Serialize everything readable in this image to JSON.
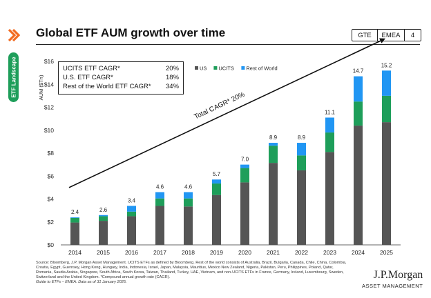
{
  "header": {
    "title": "Global ETF AUM growth over time",
    "tags": [
      "GTE",
      "EMEA",
      "4"
    ],
    "side_tab": "ETF Landscape"
  },
  "cagr_box": {
    "rows": [
      {
        "label": "UCITS ETF CAGR*",
        "value": "20%"
      },
      {
        "label": "U.S. ETF CAGR*",
        "value": "18%"
      },
      {
        "label": "Rest of the World ETF CAGR*",
        "value": "34%"
      }
    ]
  },
  "chart_data": {
    "type": "bar",
    "stacked": true,
    "ylabel": "AUM ($Tn)",
    "ylim": [
      0,
      16
    ],
    "yticks": [
      "$0",
      "$2",
      "$4",
      "$6",
      "$8",
      "$10",
      "$12",
      "$14",
      "$16"
    ],
    "categories": [
      "2014",
      "2015",
      "2016",
      "2017",
      "2018",
      "2019",
      "2020",
      "2021",
      "2022",
      "2023",
      "2024",
      "2025"
    ],
    "series": [
      {
        "name": "US",
        "color": "#555555",
        "values": [
          1.95,
          2.1,
          2.5,
          3.4,
          3.35,
          4.35,
          5.45,
          7.15,
          6.5,
          8.1,
          10.4,
          10.7
        ]
      },
      {
        "name": "UCITS",
        "color": "#1e9e5a",
        "values": [
          0.4,
          0.4,
          0.4,
          0.65,
          0.7,
          1.0,
          1.25,
          1.5,
          1.3,
          1.7,
          2.1,
          2.3
        ]
      },
      {
        "name": "Rest of World",
        "color": "#2196f3",
        "values": [
          0.05,
          0.1,
          0.5,
          0.55,
          0.55,
          0.35,
          0.3,
          0.25,
          1.1,
          1.3,
          2.2,
          2.2
        ]
      }
    ],
    "totals": [
      "2.4",
      "2.6",
      "3.4",
      "4.6",
      "4.6",
      "5.7",
      "7.0",
      "8.9",
      "8.9",
      "11.1",
      "14.7",
      "15.2"
    ],
    "legend": [
      "US",
      "UCITS",
      "Rest of World"
    ],
    "annotation": "Total CAGR* 20%"
  },
  "footer": {
    "source": "Source: Bloomberg, J.P. Morgan Asset Management. UCITS ETFs as defined by Bloomberg. Rest of the world consists of Australia, Brazil, Bulgaria, Canada, Chile, China, Colombia, Croatia, Egypt, Guernsey, Hong Kong, Hungary, India, Indonesia, Israel, Japan, Malaysia, Mauritius, Mexico New Zealand, Nigeria, Pakistan, Peru, Philippines, Poland, Qatar, Romania, Saudia Arabia, Singapore, South Africa, South Korea, Taiwan, Thailand, Turkey, UAE, Vietnam, and non-UCITS ETFs in France, Germany, Ireland, Luxembourg, Sweden, Switzerland and the United Kingdom. *Compound annual growth rate (CAGR).",
    "guide": "Guide to ETFs – EMEA. Data as of 31 January 2025.",
    "logo_name": "J.P.Morgan",
    "logo_sub": "ASSET MANAGEMENT"
  }
}
